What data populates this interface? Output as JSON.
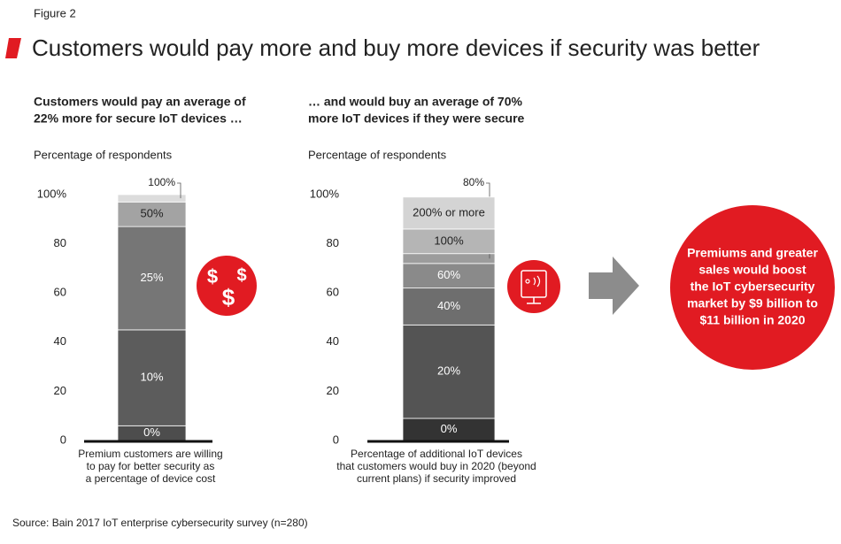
{
  "figure_label": "Figure 2",
  "title": "Customers would pay more and buy more devices if security was better",
  "source": "Source: Bain 2017 IoT enterprise cybersecurity survey (n=280)",
  "callout": [
    "Premiums and greater",
    "sales would boost",
    "the IoT cybersecurity",
    "market by $9 billion to",
    "$11 billion in 2020"
  ],
  "chart_data": [
    {
      "type": "stacked_bar",
      "subtitle": [
        "Customers would pay an average of",
        "22% more for secure IoT devices …"
      ],
      "y_label": "Percentage of respondents",
      "x_label": [
        "Premium customers are willing",
        "to pay for better security as",
        "a percentage of device cost"
      ],
      "categories": [
        "0%",
        "10%",
        "25%",
        "50%",
        "100%"
      ],
      "values": [
        6,
        39,
        42,
        10,
        3
      ],
      "colors": [
        "#4d4d4d",
        "#5c5c5c",
        "#767676",
        "#a3a3a3",
        "#dcdcdc"
      ],
      "ylim": [
        0,
        100
      ],
      "yticks": [
        0,
        20,
        40,
        60,
        80,
        {
          "value": 100,
          "label": "100%"
        }
      ]
    },
    {
      "type": "stacked_bar",
      "subtitle": [
        "… and would buy an average of 70%",
        "more IoT devices if they were secure"
      ],
      "y_label": "Percentage of respondents",
      "x_label": [
        "Percentage of additional IoT devices",
        "that customers would buy in 2020 (beyond",
        "current plans) if security improved"
      ],
      "categories": [
        "0%",
        "20%",
        "40%",
        "60%",
        "80%",
        "100%",
        "200% or more"
      ],
      "values": [
        9,
        38,
        15,
        10,
        4,
        10,
        13
      ],
      "colors": [
        "#333333",
        "#545454",
        "#6e6e6e",
        "#8a8a8a",
        "#9c9c9c",
        "#b5b5b5",
        "#d4d4d4"
      ],
      "ylim": [
        0,
        100
      ],
      "yticks": [
        0,
        20,
        40,
        60,
        80,
        {
          "value": 100,
          "label": "100%"
        }
      ]
    }
  ]
}
